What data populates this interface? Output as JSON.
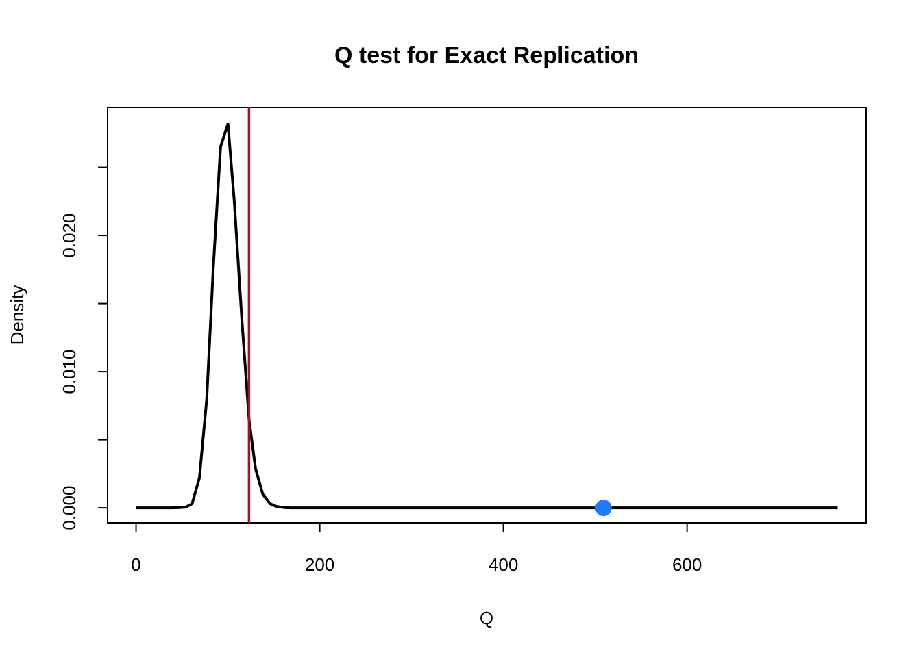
{
  "chart_data": {
    "type": "line",
    "title": "Q test for Exact Replication",
    "xlabel": "Q",
    "ylabel": "Density",
    "xlim": [
      -31,
      795
    ],
    "ylim": [
      -0.0011,
      0.0294
    ],
    "x_ticks": [
      0,
      200,
      400,
      600
    ],
    "x_tick_labels": [
      "0",
      "200",
      "400",
      "600"
    ],
    "y_ticks": [
      0,
      0.005,
      0.01,
      0.015,
      0.02,
      0.025
    ],
    "y_tick_labels": [
      "0.000",
      "",
      "0.010",
      "",
      "0.020",
      ""
    ],
    "grid": false,
    "series": [
      {
        "color": "#000000",
        "x": [
          0,
          8,
          15,
          23,
          31,
          38,
          46,
          54,
          61,
          69,
          77,
          84,
          92,
          100,
          107,
          115,
          123,
          130,
          138,
          146,
          153,
          161,
          169,
          176,
          184,
          200,
          300,
          400,
          500,
          600,
          700,
          764
        ],
        "y": [
          0,
          0,
          0,
          0,
          0,
          0,
          1e-05,
          5e-05,
          0.0003,
          0.0022,
          0.008,
          0.0175,
          0.0265,
          0.0282,
          0.0225,
          0.014,
          0.0065,
          0.0029,
          0.001,
          0.0003,
          0.0001,
          2e-05,
          0,
          0,
          0,
          0,
          0,
          0,
          0,
          0,
          0,
          0
        ]
      }
    ],
    "vline": {
      "x": 123,
      "color": "#a0151e"
    },
    "point": {
      "x": 509,
      "y": 0,
      "color": "#1f7af7"
    }
  }
}
